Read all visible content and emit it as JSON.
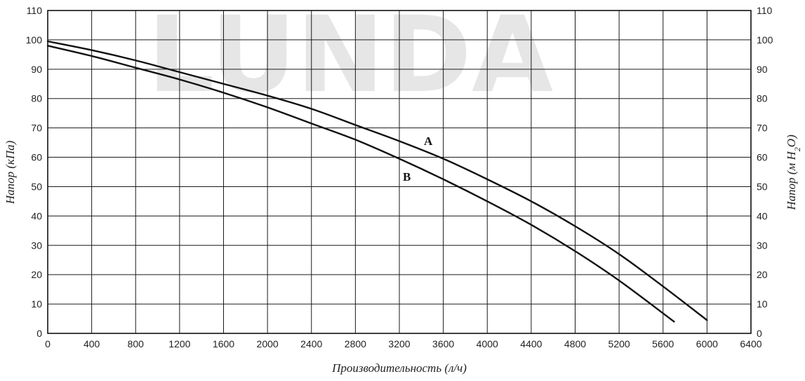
{
  "watermark": {
    "text": "LUNDA"
  },
  "chart_data": {
    "type": "line",
    "xlabel": "Производительность (л/ч)",
    "ylabel_left": "Напор (кПа)",
    "ylabel_right": {
      "text": "Напор (м H",
      "sub": "2",
      "after": "O)"
    },
    "xlim": [
      0,
      6400
    ],
    "ylim": [
      0,
      110
    ],
    "x_ticks": [
      0,
      400,
      800,
      1200,
      1600,
      2000,
      2400,
      2800,
      3200,
      3600,
      4000,
      4400,
      4800,
      5200,
      5600,
      6000,
      6400
    ],
    "y_ticks_left": [
      0,
      10,
      20,
      30,
      40,
      50,
      60,
      70,
      80,
      90,
      100,
      110
    ],
    "y_ticks_right": [
      0,
      10,
      20,
      30,
      40,
      50,
      60,
      70,
      80,
      90,
      100,
      110
    ],
    "grid": true,
    "series": [
      {
        "name": "A",
        "x": [
          0,
          400,
          800,
          1200,
          1600,
          2000,
          2400,
          2800,
          3200,
          3600,
          4000,
          4400,
          4800,
          5200,
          5600,
          6000
        ],
        "y": [
          99.5,
          96.5,
          93,
          89,
          85,
          81,
          76.5,
          71,
          65.5,
          59.5,
          52.5,
          45,
          36.5,
          27,
          16,
          4.5
        ]
      },
      {
        "name": "B",
        "x": [
          0,
          400,
          800,
          1200,
          1600,
          2000,
          2400,
          2800,
          3200,
          3600,
          4000,
          4400,
          4800,
          5200,
          5700
        ],
        "y": [
          98,
          94.5,
          90.5,
          86.5,
          82,
          77,
          71.5,
          66,
          59.5,
          52.5,
          45,
          37,
          28,
          18,
          4
        ]
      }
    ]
  }
}
